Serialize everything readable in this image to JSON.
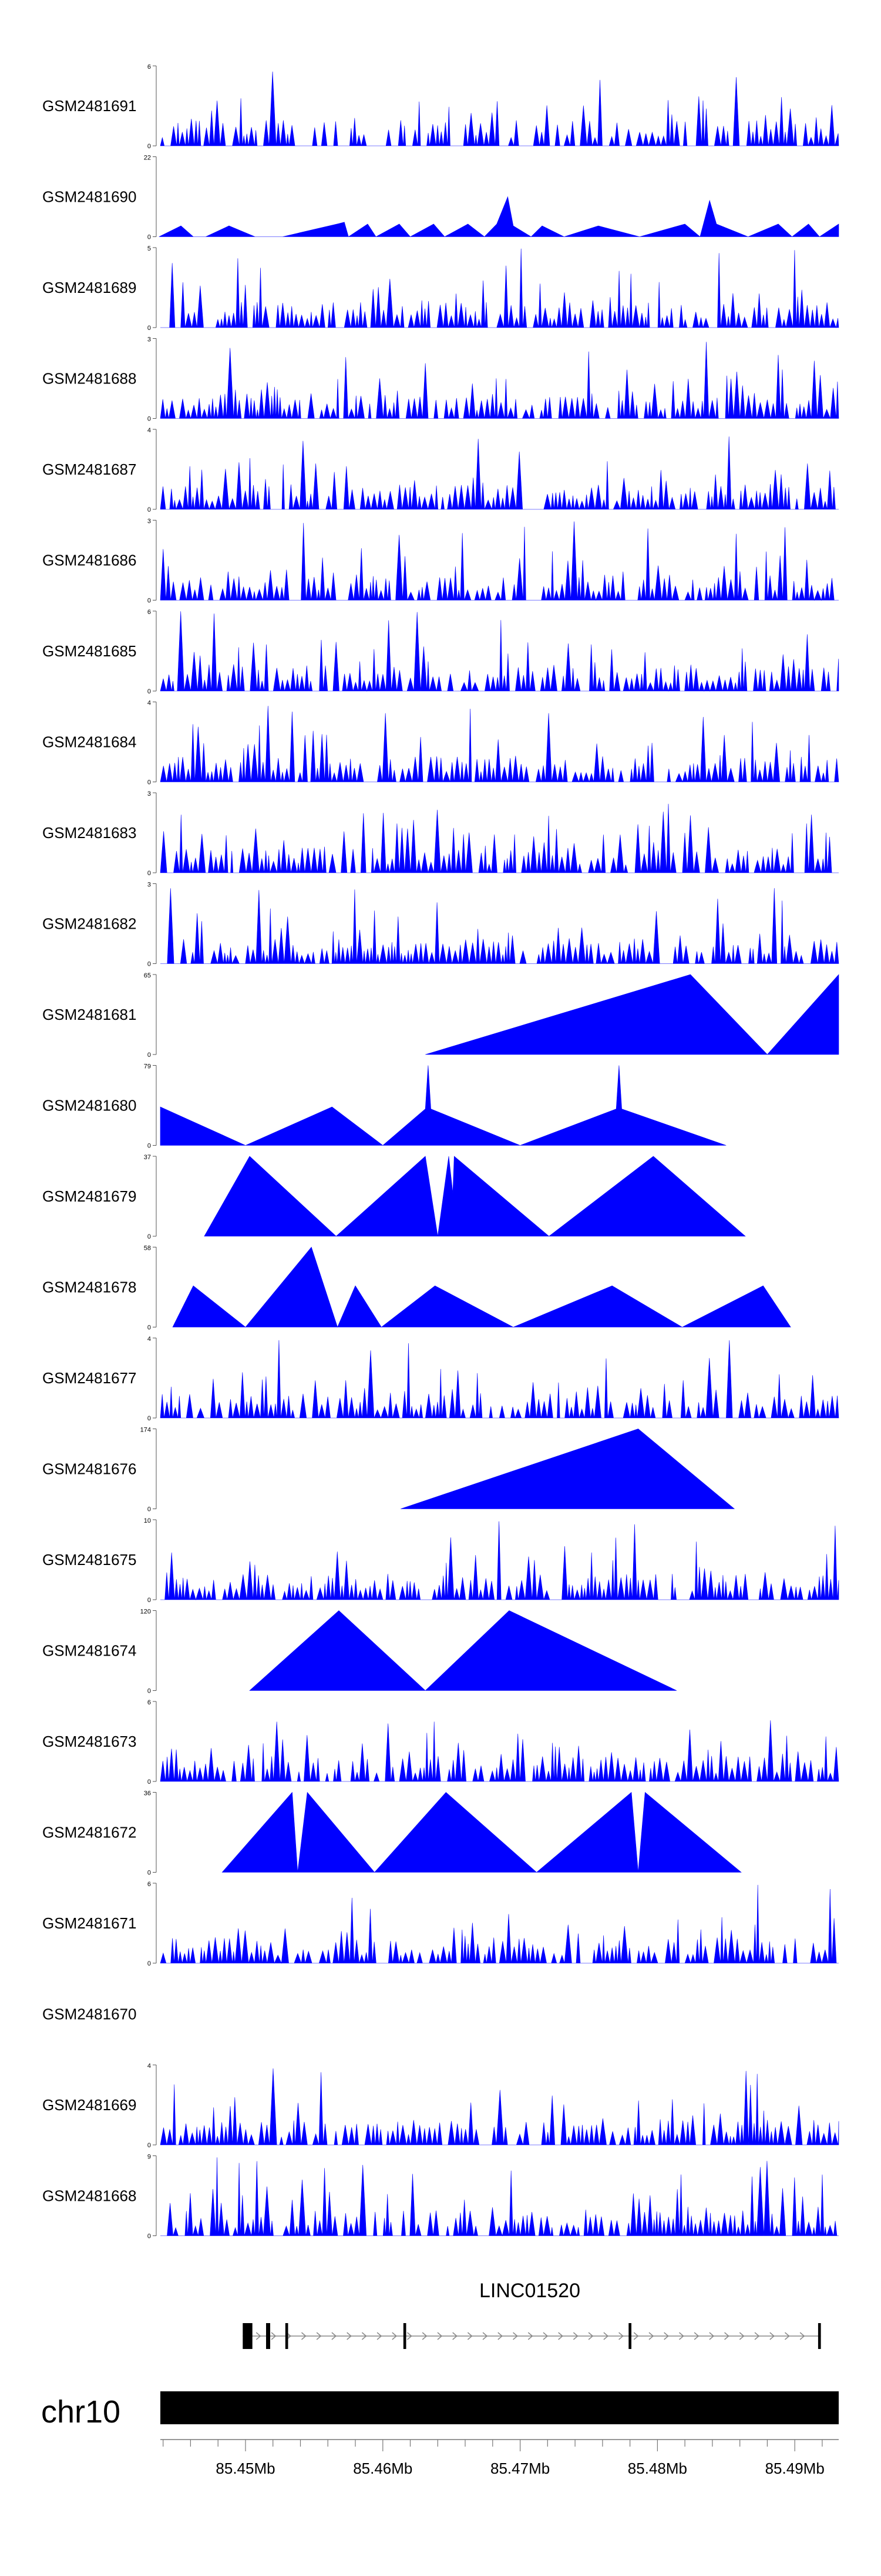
{
  "chart_data": {
    "type": "area",
    "title": "",
    "fill_color": "#0000FF",
    "chromosome": {
      "name": "chr10",
      "color": "#000000",
      "range": [
        85.4438,
        85.4932
      ],
      "unit": "Mb"
    },
    "axis": {
      "major_ticks": [
        85.45,
        85.46,
        85.47,
        85.48,
        85.49
      ],
      "tick_labels": [
        "85.45Mb",
        "85.46Mb",
        "85.47Mb",
        "85.48Mb",
        "85.49Mb"
      ],
      "minor_tick_step": 0.002
    },
    "gene": {
      "name": "LINC01520",
      "strand": "+",
      "start": 85.4498,
      "end": 85.4919,
      "exons": [
        [
          85.4498,
          85.4505
        ],
        [
          85.4515,
          85.4518
        ],
        [
          85.4529,
          85.4531
        ],
        [
          85.4615,
          85.4617
        ],
        [
          85.4779,
          85.4781
        ],
        [
          85.4917,
          85.4919
        ]
      ]
    },
    "tracks": [
      {
        "name": "GSM2481691",
        "ymax": 6,
        "style": "dense"
      },
      {
        "name": "GSM2481690",
        "ymax": 22,
        "style": "peaks",
        "points": [
          [
            85.4438,
            0
          ],
          [
            85.4437,
            0
          ],
          [
            85.4453,
            3
          ],
          [
            85.4462,
            0
          ],
          [
            85.4471,
            0
          ],
          [
            85.4488,
            3
          ],
          [
            85.4507,
            0
          ],
          [
            85.4527,
            0
          ],
          [
            85.4568,
            3.6
          ],
          [
            85.4572,
            4
          ],
          [
            85.4575,
            0
          ],
          [
            85.4589,
            3.5
          ],
          [
            85.4595,
            0
          ],
          [
            85.4612,
            3.5
          ],
          [
            85.462,
            0
          ],
          [
            85.4637,
            3.5
          ],
          [
            85.4645,
            0
          ],
          [
            85.4662,
            3.5
          ],
          [
            85.4674,
            0
          ],
          [
            85.4683,
            3.5
          ],
          [
            85.4691,
            11
          ],
          [
            85.4695,
            3
          ],
          [
            85.4708,
            0
          ],
          [
            85.4716,
            3
          ],
          [
            85.4732,
            0
          ],
          [
            85.4757,
            3
          ],
          [
            85.4787,
            0
          ],
          [
            85.482,
            3.5
          ],
          [
            85.4831,
            0
          ],
          [
            85.4838,
            10
          ],
          [
            85.4843,
            3.5
          ],
          [
            85.4866,
            0
          ],
          [
            85.4888,
            3.5
          ],
          [
            85.4898,
            0
          ],
          [
            85.491,
            3.5
          ],
          [
            85.4918,
            0
          ],
          [
            85.4932,
            3.5
          ],
          [
            85.4932,
            0
          ]
        ]
      },
      {
        "name": "GSM2481689",
        "ymax": 5,
        "style": "dense"
      },
      {
        "name": "GSM2481688",
        "ymax": 3,
        "style": "dense"
      },
      {
        "name": "GSM2481687",
        "ymax": 4,
        "style": "dense"
      },
      {
        "name": "GSM2481686",
        "ymax": 3,
        "style": "dense"
      },
      {
        "name": "GSM2481685",
        "ymax": 6,
        "style": "dense"
      },
      {
        "name": "GSM2481684",
        "ymax": 4,
        "style": "dense"
      },
      {
        "name": "GSM2481683",
        "ymax": 3,
        "style": "dense"
      },
      {
        "name": "GSM2481682",
        "ymax": 3,
        "style": "dense"
      },
      {
        "name": "GSM2481681",
        "ymax": 65,
        "style": "peaks",
        "points": [
          [
            85.4631,
            0
          ],
          [
            85.4824,
            65
          ],
          [
            85.488,
            0
          ],
          [
            85.4932,
            65
          ],
          [
            85.4932,
            0
          ]
        ]
      },
      {
        "name": "GSM2481680",
        "ymax": 79,
        "style": "peaks",
        "points": [
          [
            85.4438,
            0
          ],
          [
            85.4438,
            38
          ],
          [
            85.45,
            0
          ],
          [
            85.4563,
            38
          ],
          [
            85.46,
            0
          ],
          [
            85.4631,
            36
          ],
          [
            85.4633,
            79
          ],
          [
            85.4635,
            36
          ],
          [
            85.47,
            0
          ],
          [
            85.477,
            36
          ],
          [
            85.4772,
            79
          ],
          [
            85.4774,
            36
          ],
          [
            85.485,
            0
          ]
        ]
      },
      {
        "name": "GSM2481679",
        "ymax": 37,
        "style": "peaks",
        "points": [
          [
            85.447,
            0
          ],
          [
            85.4503,
            37
          ],
          [
            85.4566,
            0
          ],
          [
            85.4631,
            37
          ],
          [
            85.464,
            0
          ],
          [
            85.4648,
            37
          ],
          [
            85.4651,
            20
          ],
          [
            85.4652,
            37
          ],
          [
            85.4721,
            0
          ],
          [
            85.4797,
            37
          ],
          [
            85.4864,
            0
          ]
        ]
      },
      {
        "name": "GSM2481678",
        "ymax": 58,
        "style": "peaks",
        "points": [
          [
            85.4447,
            0
          ],
          [
            85.4462,
            30
          ],
          [
            85.45,
            0
          ],
          [
            85.4548,
            58
          ],
          [
            85.4567,
            0
          ],
          [
            85.458,
            30
          ],
          [
            85.4599,
            0
          ],
          [
            85.4638,
            30
          ],
          [
            85.4695,
            0
          ],
          [
            85.4767,
            30
          ],
          [
            85.4818,
            0
          ],
          [
            85.4877,
            30
          ],
          [
            85.4897,
            0
          ]
        ]
      },
      {
        "name": "GSM2481677",
        "ymax": 4,
        "style": "dense"
      },
      {
        "name": "GSM2481676",
        "ymax": 174,
        "style": "peaks",
        "points": [
          [
            85.4613,
            0
          ],
          [
            85.4786,
            174
          ],
          [
            85.4856,
            0
          ]
        ]
      },
      {
        "name": "GSM2481675",
        "ymax": 10,
        "style": "dense"
      },
      {
        "name": "GSM2481674",
        "ymax": 120,
        "style": "peaks",
        "points": [
          [
            85.4503,
            0
          ],
          [
            85.4568,
            120
          ],
          [
            85.4631,
            0
          ],
          [
            85.4692,
            120
          ],
          [
            85.4814,
            0
          ]
        ]
      },
      {
        "name": "GSM2481673",
        "ymax": 6,
        "style": "dense"
      },
      {
        "name": "GSM2481672",
        "ymax": 36,
        "style": "peaks",
        "points": [
          [
            85.4483,
            0
          ],
          [
            85.4534,
            36
          ],
          [
            85.4538,
            0
          ],
          [
            85.4545,
            36
          ],
          [
            85.4594,
            0
          ],
          [
            85.4646,
            36
          ],
          [
            85.4712,
            0
          ],
          [
            85.4781,
            36
          ],
          [
            85.4786,
            0
          ],
          [
            85.4791,
            36
          ],
          [
            85.4861,
            0
          ]
        ]
      },
      {
        "name": "GSM2481671",
        "ymax": 6,
        "style": "dense"
      },
      {
        "name": "GSM2481670",
        "ymax": null,
        "style": "empty"
      },
      {
        "name": "GSM2481669",
        "ymax": 4,
        "style": "dense"
      },
      {
        "name": "GSM2481668",
        "ymax": 9,
        "style": "dense"
      }
    ]
  }
}
